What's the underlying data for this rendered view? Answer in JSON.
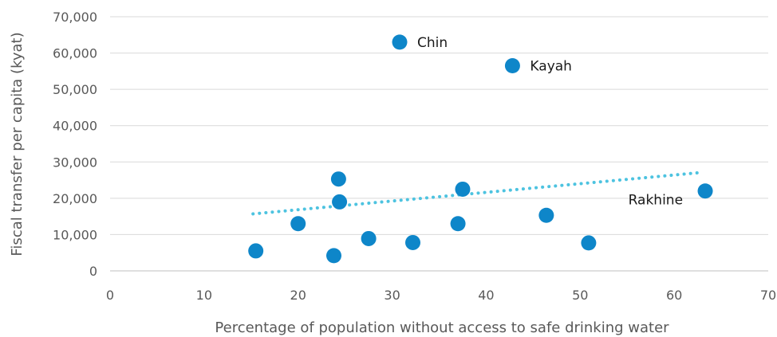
{
  "chart_data": {
    "type": "scatter",
    "title": "",
    "xlabel": "Percentage of population without access to safe drinking water",
    "ylabel": "Fiscal transfer per capita (kyat)",
    "xlim": [
      0,
      70
    ],
    "ylim": [
      0,
      70000
    ],
    "x_ticks": [
      0,
      10,
      20,
      30,
      40,
      50,
      60,
      70
    ],
    "y_ticks": [
      0,
      10000,
      20000,
      30000,
      40000,
      50000,
      60000,
      70000
    ],
    "x_tick_labels": [
      "0",
      "10",
      "20",
      "30",
      "40",
      "50",
      "60",
      "70"
    ],
    "y_tick_labels": [
      "0",
      "10,000",
      "20,000",
      "30,000",
      "40,000",
      "50,000",
      "60,000",
      "70,000"
    ],
    "grid": "horizontal",
    "point_color": "#0e86c9",
    "trend_color": "#4dc3e0",
    "points": [
      {
        "x": 15.5,
        "y": 5500,
        "label": ""
      },
      {
        "x": 20,
        "y": 13000,
        "label": ""
      },
      {
        "x": 23.8,
        "y": 4200,
        "label": ""
      },
      {
        "x": 24.3,
        "y": 25300,
        "label": ""
      },
      {
        "x": 24.4,
        "y": 19000,
        "label": ""
      },
      {
        "x": 27.5,
        "y": 8900,
        "label": ""
      },
      {
        "x": 30.8,
        "y": 63000,
        "label": "Chin"
      },
      {
        "x": 32.2,
        "y": 7800,
        "label": ""
      },
      {
        "x": 37,
        "y": 13000,
        "label": ""
      },
      {
        "x": 37.5,
        "y": 22500,
        "label": ""
      },
      {
        "x": 42.8,
        "y": 56500,
        "label": "Kayah"
      },
      {
        "x": 46.4,
        "y": 15300,
        "label": ""
      },
      {
        "x": 50.9,
        "y": 7700,
        "label": ""
      },
      {
        "x": 63.3,
        "y": 22000,
        "label": "Rakhine"
      }
    ],
    "trendline": {
      "x": [
        15.2,
        62.5
      ],
      "y": [
        15700,
        27000
      ]
    }
  }
}
